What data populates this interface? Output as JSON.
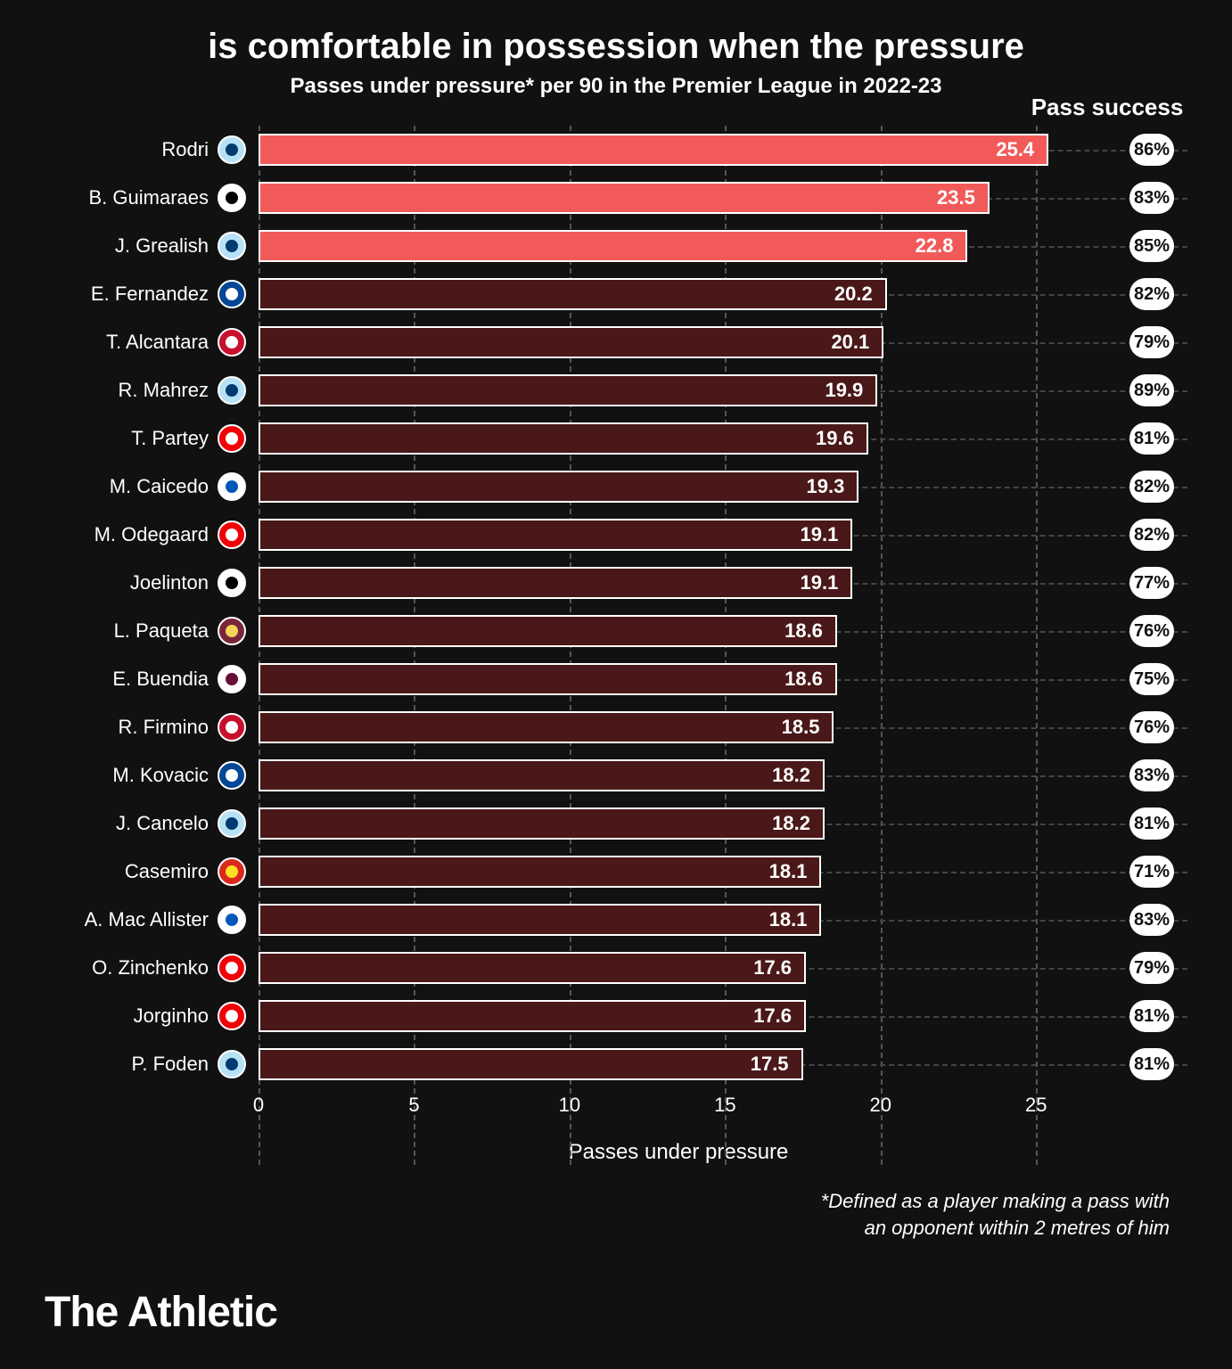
{
  "title": "is comfortable in possession when the pressure",
  "subtitle": "Passes under pressure* per 90 in the Premier League in 2022-23",
  "pass_success_header": "Pass success",
  "x_axis_label": "Passes under pressure",
  "footnote_line1": "*Defined as a player making a pass with",
  "footnote_line2": "an opponent within 2 metres of him",
  "brand": "The Athletic",
  "chart": {
    "type": "bar",
    "xlim": [
      0,
      27
    ],
    "ticks": [
      0,
      5,
      10,
      15,
      20,
      25
    ],
    "grid_color": "#444444",
    "background_color": "#111111",
    "bar_border_color": "#ffffff",
    "highlight_color": "#f25a5a",
    "dim_color": "#4a1818",
    "value_fontsize": 22,
    "label_fontsize": 22,
    "players": [
      {
        "name": "Rodri",
        "value": 25.4,
        "pass_success": "86%",
        "highlight": true,
        "club_bg": "#b7e1f5",
        "club_accent": "#003a70"
      },
      {
        "name": "B. Guimaraes",
        "value": 23.5,
        "pass_success": "83%",
        "highlight": true,
        "club_bg": "#ffffff",
        "club_accent": "#000000"
      },
      {
        "name": "J. Grealish",
        "value": 22.8,
        "pass_success": "85%",
        "highlight": true,
        "club_bg": "#b7e1f5",
        "club_accent": "#003a70"
      },
      {
        "name": "E. Fernandez",
        "value": 20.2,
        "pass_success": "82%",
        "highlight": false,
        "club_bg": "#034694",
        "club_accent": "#ffffff"
      },
      {
        "name": "T. Alcantara",
        "value": 20.1,
        "pass_success": "79%",
        "highlight": false,
        "club_bg": "#c8102e",
        "club_accent": "#ffffff"
      },
      {
        "name": "R. Mahrez",
        "value": 19.9,
        "pass_success": "89%",
        "highlight": false,
        "club_bg": "#b7e1f5",
        "club_accent": "#003a70"
      },
      {
        "name": "T. Partey",
        "value": 19.6,
        "pass_success": "81%",
        "highlight": false,
        "club_bg": "#ef0107",
        "club_accent": "#ffffff"
      },
      {
        "name": "M. Caicedo",
        "value": 19.3,
        "pass_success": "82%",
        "highlight": false,
        "club_bg": "#ffffff",
        "club_accent": "#0057b8"
      },
      {
        "name": "M. Odegaard",
        "value": 19.1,
        "pass_success": "82%",
        "highlight": false,
        "club_bg": "#ef0107",
        "club_accent": "#ffffff"
      },
      {
        "name": "Joelinton",
        "value": 19.1,
        "pass_success": "77%",
        "highlight": false,
        "club_bg": "#ffffff",
        "club_accent": "#000000"
      },
      {
        "name": "L. Paqueta",
        "value": 18.6,
        "pass_success": "76%",
        "highlight": false,
        "club_bg": "#7a263a",
        "club_accent": "#f3d459"
      },
      {
        "name": "E. Buendia",
        "value": 18.6,
        "pass_success": "75%",
        "highlight": false,
        "club_bg": "#ffffff",
        "club_accent": "#670e36"
      },
      {
        "name": "R. Firmino",
        "value": 18.5,
        "pass_success": "76%",
        "highlight": false,
        "club_bg": "#c8102e",
        "club_accent": "#ffffff"
      },
      {
        "name": "M. Kovacic",
        "value": 18.2,
        "pass_success": "83%",
        "highlight": false,
        "club_bg": "#034694",
        "club_accent": "#ffffff"
      },
      {
        "name": "J. Cancelo",
        "value": 18.2,
        "pass_success": "81%",
        "highlight": false,
        "club_bg": "#b7e1f5",
        "club_accent": "#003a70"
      },
      {
        "name": "Casemiro",
        "value": 18.1,
        "pass_success": "71%",
        "highlight": false,
        "club_bg": "#da291c",
        "club_accent": "#fbe122"
      },
      {
        "name": "A. Mac Allister",
        "value": 18.1,
        "pass_success": "83%",
        "highlight": false,
        "club_bg": "#ffffff",
        "club_accent": "#0057b8"
      },
      {
        "name": "O. Zinchenko",
        "value": 17.6,
        "pass_success": "79%",
        "highlight": false,
        "club_bg": "#ef0107",
        "club_accent": "#ffffff"
      },
      {
        "name": "Jorginho",
        "value": 17.6,
        "pass_success": "81%",
        "highlight": false,
        "club_bg": "#ef0107",
        "club_accent": "#ffffff"
      },
      {
        "name": "P. Foden",
        "value": 17.5,
        "pass_success": "81%",
        "highlight": false,
        "club_bg": "#b7e1f5",
        "club_accent": "#003a70"
      }
    ]
  }
}
